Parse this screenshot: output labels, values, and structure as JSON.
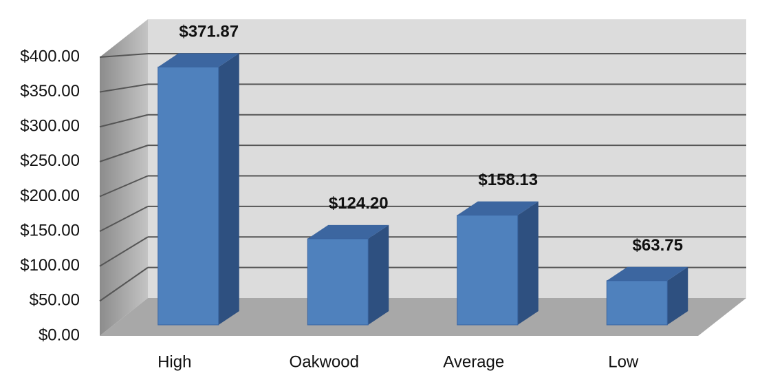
{
  "chart_data": {
    "type": "bar3d",
    "categories": [
      "High",
      "Oakwood",
      "Average",
      "Low"
    ],
    "values": [
      371.87,
      124.2,
      158.13,
      63.75
    ],
    "value_labels": [
      "$371.87",
      "$124.20",
      "$158.13",
      "$63.75"
    ],
    "color": "#4f81bd",
    "ylim": [
      0,
      400
    ],
    "yticks": [
      {
        "value": 0,
        "label": "$0.00"
      },
      {
        "value": 50,
        "label": "$50.00"
      },
      {
        "value": 100,
        "label": "$100.00"
      },
      {
        "value": 150,
        "label": "$150.00"
      },
      {
        "value": 200,
        "label": "$200.00"
      },
      {
        "value": 250,
        "label": "$250.00"
      },
      {
        "value": 300,
        "label": "$300.00"
      },
      {
        "value": 350,
        "label": "$350.00"
      },
      {
        "value": 400,
        "label": "$400.00"
      }
    ],
    "grid": true
  }
}
